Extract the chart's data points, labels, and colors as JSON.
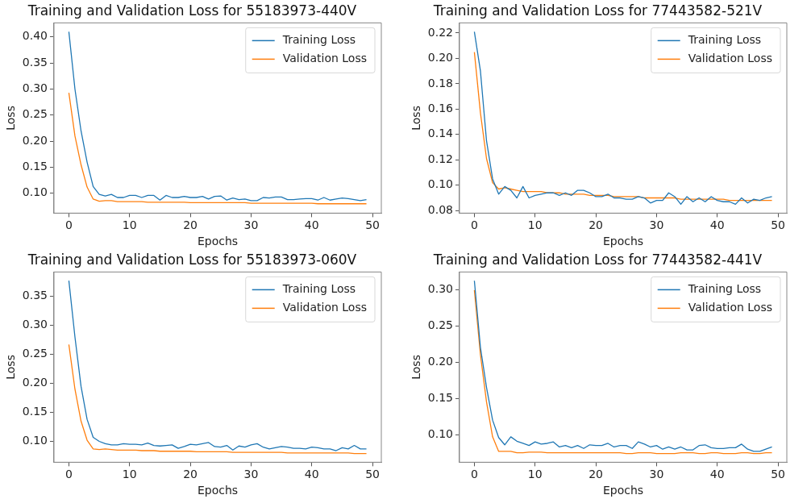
{
  "chart_data": [
    {
      "type": "line",
      "title": "Training and Validation Loss for 55183973-440V",
      "xlabel": "Epochs",
      "ylabel": "Loss",
      "legend": "top right",
      "grid": false,
      "x": [
        0,
        1,
        2,
        3,
        4,
        5,
        6,
        7,
        8,
        9,
        10,
        11,
        12,
        13,
        14,
        15,
        16,
        17,
        18,
        19,
        20,
        21,
        22,
        23,
        24,
        25,
        26,
        27,
        28,
        29,
        30,
        31,
        32,
        33,
        34,
        35,
        36,
        37,
        38,
        39,
        40,
        41,
        42,
        43,
        44,
        45,
        46,
        47,
        48,
        49
      ],
      "xlim": [
        -2.45,
        51.45
      ],
      "xticks": [
        0,
        10,
        20,
        30,
        40,
        50
      ],
      "ylim": [
        0.062,
        0.427
      ],
      "yticks": [
        {
          "value": 0.1,
          "label": "0.10"
        },
        {
          "value": 0.15,
          "label": "0.15"
        },
        {
          "value": 0.2,
          "label": "0.20"
        },
        {
          "value": 0.25,
          "label": "0.25"
        },
        {
          "value": 0.3,
          "label": "0.30"
        },
        {
          "value": 0.35,
          "label": "0.35"
        },
        {
          "value": 0.4,
          "label": "0.40"
        }
      ],
      "series": [
        {
          "name": "Training Loss",
          "color": "#1f77b4",
          "values": [
            0.41,
            0.3,
            0.22,
            0.16,
            0.113,
            0.098,
            0.095,
            0.098,
            0.092,
            0.092,
            0.096,
            0.096,
            0.092,
            0.096,
            0.096,
            0.087,
            0.096,
            0.092,
            0.092,
            0.094,
            0.092,
            0.092,
            0.094,
            0.089,
            0.094,
            0.095,
            0.087,
            0.091,
            0.088,
            0.089,
            0.086,
            0.086,
            0.092,
            0.091,
            0.093,
            0.093,
            0.088,
            0.088,
            0.089,
            0.09,
            0.09,
            0.087,
            0.092,
            0.087,
            0.089,
            0.091,
            0.09,
            0.088,
            0.086,
            0.088
          ]
        },
        {
          "name": "Validation Loss",
          "color": "#ff7f0e",
          "values": [
            0.293,
            0.21,
            0.155,
            0.112,
            0.089,
            0.085,
            0.086,
            0.086,
            0.084,
            0.084,
            0.084,
            0.084,
            0.084,
            0.083,
            0.083,
            0.083,
            0.083,
            0.083,
            0.083,
            0.083,
            0.082,
            0.082,
            0.082,
            0.082,
            0.082,
            0.082,
            0.082,
            0.082,
            0.082,
            0.082,
            0.081,
            0.081,
            0.081,
            0.081,
            0.081,
            0.081,
            0.081,
            0.081,
            0.081,
            0.081,
            0.081,
            0.08,
            0.08,
            0.08,
            0.08,
            0.08,
            0.08,
            0.08,
            0.08,
            0.08
          ]
        }
      ]
    },
    {
      "type": "line",
      "title": "Training and Validation Loss for 77443582-521V",
      "xlabel": "Epochs",
      "ylabel": "Loss",
      "legend": "top right",
      "grid": false,
      "x": [
        0,
        1,
        2,
        3,
        4,
        5,
        6,
        7,
        8,
        9,
        10,
        11,
        12,
        13,
        14,
        15,
        16,
        17,
        18,
        19,
        20,
        21,
        22,
        23,
        24,
        25,
        26,
        27,
        28,
        29,
        30,
        31,
        32,
        33,
        34,
        35,
        36,
        37,
        38,
        39,
        40,
        41,
        42,
        43,
        44,
        45,
        46,
        47,
        48,
        49
      ],
      "xlim": [
        -2.45,
        51.45
      ],
      "xticks": [
        0,
        10,
        20,
        30,
        40,
        50
      ],
      "ylim": [
        0.078,
        0.228
      ],
      "yticks": [
        {
          "value": 0.08,
          "label": "0.08"
        },
        {
          "value": 0.1,
          "label": "0.10"
        },
        {
          "value": 0.12,
          "label": "0.12"
        },
        {
          "value": 0.14,
          "label": "0.14"
        },
        {
          "value": 0.16,
          "label": "0.16"
        },
        {
          "value": 0.18,
          "label": "0.18"
        },
        {
          "value": 0.2,
          "label": "0.20"
        },
        {
          "value": 0.22,
          "label": "0.22"
        }
      ],
      "series": [
        {
          "name": "Training Loss",
          "color": "#1f77b4",
          "values": [
            0.221,
            0.19,
            0.135,
            0.105,
            0.093,
            0.099,
            0.096,
            0.09,
            0.099,
            0.09,
            0.092,
            0.093,
            0.094,
            0.094,
            0.092,
            0.094,
            0.092,
            0.096,
            0.096,
            0.094,
            0.091,
            0.091,
            0.093,
            0.09,
            0.09,
            0.089,
            0.089,
            0.091,
            0.09,
            0.086,
            0.088,
            0.088,
            0.094,
            0.091,
            0.085,
            0.091,
            0.087,
            0.09,
            0.087,
            0.091,
            0.088,
            0.087,
            0.087,
            0.085,
            0.09,
            0.086,
            0.089,
            0.088,
            0.09,
            0.091
          ]
        },
        {
          "name": "Validation Loss",
          "color": "#ff7f0e",
          "values": [
            0.205,
            0.157,
            0.121,
            0.102,
            0.097,
            0.098,
            0.097,
            0.096,
            0.095,
            0.095,
            0.095,
            0.095,
            0.094,
            0.094,
            0.094,
            0.093,
            0.093,
            0.093,
            0.093,
            0.092,
            0.092,
            0.092,
            0.092,
            0.091,
            0.091,
            0.091,
            0.091,
            0.091,
            0.09,
            0.09,
            0.09,
            0.09,
            0.09,
            0.09,
            0.089,
            0.089,
            0.089,
            0.089,
            0.089,
            0.089,
            0.089,
            0.089,
            0.088,
            0.088,
            0.088,
            0.088,
            0.088,
            0.088,
            0.088,
            0.088
          ]
        }
      ]
    },
    {
      "type": "line",
      "title": "Training and Validation Loss for 55183973-060V",
      "xlabel": "Epochs",
      "ylabel": "Loss",
      "legend": "top right",
      "grid": false,
      "x": [
        0,
        1,
        2,
        3,
        4,
        5,
        6,
        7,
        8,
        9,
        10,
        11,
        12,
        13,
        14,
        15,
        16,
        17,
        18,
        19,
        20,
        21,
        22,
        23,
        24,
        25,
        26,
        27,
        28,
        29,
        30,
        31,
        32,
        33,
        34,
        35,
        36,
        37,
        38,
        39,
        40,
        41,
        42,
        43,
        44,
        45,
        46,
        47,
        48,
        49
      ],
      "xlim": [
        -2.45,
        51.45
      ],
      "xticks": [
        0,
        10,
        20,
        30,
        40,
        50
      ],
      "ylim": [
        0.064,
        0.392
      ],
      "yticks": [
        {
          "value": 0.1,
          "label": "0.10"
        },
        {
          "value": 0.15,
          "label": "0.15"
        },
        {
          "value": 0.2,
          "label": "0.20"
        },
        {
          "value": 0.25,
          "label": "0.25"
        },
        {
          "value": 0.3,
          "label": "0.30"
        },
        {
          "value": 0.35,
          "label": "0.35"
        }
      ],
      "series": [
        {
          "name": "Training Loss",
          "color": "#1f77b4",
          "values": [
            0.377,
            0.28,
            0.195,
            0.138,
            0.107,
            0.1,
            0.096,
            0.094,
            0.094,
            0.096,
            0.095,
            0.095,
            0.094,
            0.097,
            0.093,
            0.092,
            0.093,
            0.094,
            0.088,
            0.091,
            0.095,
            0.094,
            0.096,
            0.098,
            0.091,
            0.09,
            0.093,
            0.085,
            0.092,
            0.09,
            0.094,
            0.096,
            0.09,
            0.087,
            0.089,
            0.091,
            0.09,
            0.088,
            0.088,
            0.087,
            0.09,
            0.089,
            0.087,
            0.087,
            0.084,
            0.089,
            0.087,
            0.093,
            0.087,
            0.087
          ]
        },
        {
          "name": "Validation Loss",
          "color": "#ff7f0e",
          "values": [
            0.267,
            0.19,
            0.135,
            0.102,
            0.087,
            0.086,
            0.087,
            0.086,
            0.085,
            0.085,
            0.085,
            0.085,
            0.084,
            0.084,
            0.084,
            0.083,
            0.083,
            0.083,
            0.083,
            0.083,
            0.083,
            0.082,
            0.082,
            0.082,
            0.082,
            0.082,
            0.082,
            0.081,
            0.081,
            0.081,
            0.081,
            0.081,
            0.081,
            0.081,
            0.081,
            0.081,
            0.08,
            0.08,
            0.08,
            0.08,
            0.08,
            0.08,
            0.08,
            0.08,
            0.08,
            0.08,
            0.08,
            0.079,
            0.079,
            0.079
          ]
        }
      ]
    },
    {
      "type": "line",
      "title": "Training and Validation Loss for 77443582-441V",
      "xlabel": "Epochs",
      "ylabel": "Loss",
      "legend": "top right",
      "grid": false,
      "x": [
        0,
        1,
        2,
        3,
        4,
        5,
        6,
        7,
        8,
        9,
        10,
        11,
        12,
        13,
        14,
        15,
        16,
        17,
        18,
        19,
        20,
        21,
        22,
        23,
        24,
        25,
        26,
        27,
        28,
        29,
        30,
        31,
        32,
        33,
        34,
        35,
        36,
        37,
        38,
        39,
        40,
        41,
        42,
        43,
        44,
        45,
        46,
        47,
        48,
        49
      ],
      "xlim": [
        -2.45,
        51.45
      ],
      "xticks": [
        0,
        10,
        20,
        30,
        40,
        50
      ],
      "ylim": [
        0.062,
        0.324
      ],
      "yticks": [
        {
          "value": 0.1,
          "label": "0.10"
        },
        {
          "value": 0.15,
          "label": "0.15"
        },
        {
          "value": 0.2,
          "label": "0.20"
        },
        {
          "value": 0.25,
          "label": "0.25"
        },
        {
          "value": 0.3,
          "label": "0.30"
        }
      ],
      "series": [
        {
          "name": "Training Loss",
          "color": "#1f77b4",
          "values": [
            0.312,
            0.22,
            0.165,
            0.12,
            0.096,
            0.086,
            0.097,
            0.091,
            0.088,
            0.085,
            0.09,
            0.087,
            0.088,
            0.09,
            0.083,
            0.085,
            0.082,
            0.085,
            0.081,
            0.086,
            0.085,
            0.085,
            0.088,
            0.083,
            0.085,
            0.085,
            0.081,
            0.09,
            0.087,
            0.083,
            0.085,
            0.08,
            0.083,
            0.08,
            0.083,
            0.079,
            0.079,
            0.085,
            0.086,
            0.082,
            0.081,
            0.081,
            0.082,
            0.082,
            0.087,
            0.08,
            0.077,
            0.077,
            0.08,
            0.083
          ]
        },
        {
          "name": "Validation Loss",
          "color": "#ff7f0e",
          "values": [
            0.299,
            0.21,
            0.145,
            0.097,
            0.077,
            0.077,
            0.077,
            0.075,
            0.075,
            0.076,
            0.076,
            0.076,
            0.075,
            0.075,
            0.075,
            0.075,
            0.075,
            0.075,
            0.075,
            0.075,
            0.075,
            0.075,
            0.075,
            0.075,
            0.075,
            0.074,
            0.074,
            0.075,
            0.075,
            0.075,
            0.074,
            0.074,
            0.074,
            0.074,
            0.075,
            0.075,
            0.075,
            0.074,
            0.074,
            0.075,
            0.075,
            0.074,
            0.074,
            0.074,
            0.075,
            0.075,
            0.074,
            0.074,
            0.075,
            0.075
          ]
        }
      ]
    }
  ]
}
